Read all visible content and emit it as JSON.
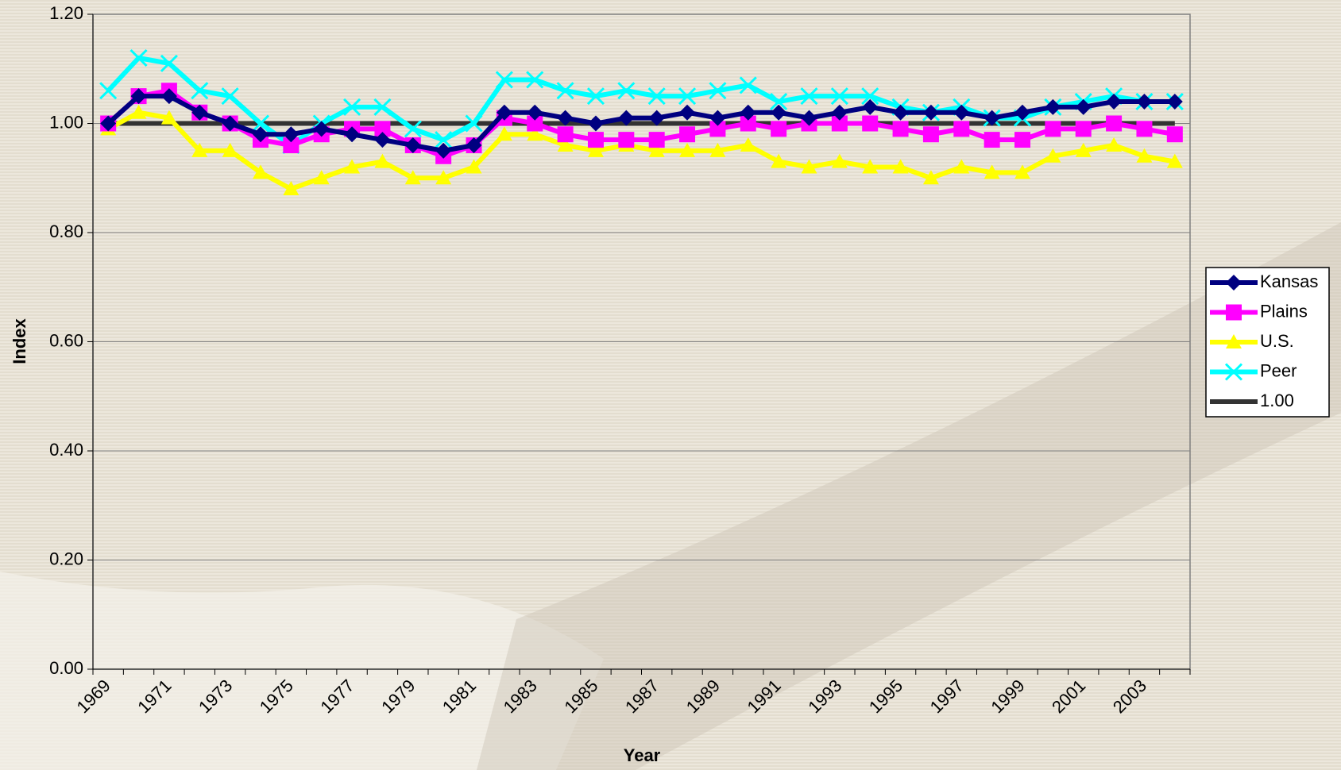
{
  "chart_data": {
    "type": "line",
    "x_label": "Year",
    "y_label": "Index",
    "categories": [
      "1969",
      null,
      "1971",
      null,
      "1973",
      null,
      "1975",
      null,
      "1977",
      null,
      "1979",
      null,
      "1981",
      null,
      "1983",
      null,
      "1985",
      null,
      "1987",
      null,
      "1989",
      null,
      "1991",
      null,
      "1993",
      null,
      "1995",
      null,
      "1997",
      null,
      "1999",
      null,
      "2001",
      null,
      "2003",
      null
    ],
    "series": [
      {
        "name": "Kansas",
        "color": "#000080",
        "marker": "diamond",
        "values": [
          1.0,
          1.05,
          1.05,
          1.02,
          1.0,
          0.98,
          0.98,
          0.99,
          0.98,
          0.97,
          0.96,
          0.95,
          0.96,
          1.02,
          1.02,
          1.01,
          1.0,
          1.01,
          1.01,
          1.02,
          1.01,
          1.02,
          1.02,
          1.01,
          1.02,
          1.03,
          1.02,
          1.02,
          1.02,
          1.01,
          1.02,
          1.03,
          1.03,
          1.04,
          1.04,
          1.04
        ]
      },
      {
        "name": "Plains",
        "color": "#ff00ff",
        "marker": "square",
        "values": [
          1.0,
          1.05,
          1.06,
          1.02,
          1.0,
          0.97,
          0.96,
          0.98,
          0.99,
          0.99,
          0.96,
          0.94,
          0.96,
          1.01,
          1.0,
          0.98,
          0.97,
          0.97,
          0.97,
          0.98,
          0.99,
          1.0,
          0.99,
          1.0,
          1.0,
          1.0,
          0.99,
          0.98,
          0.99,
          0.97,
          0.97,
          0.99,
          0.99,
          1.0,
          0.99,
          0.98
        ]
      },
      {
        "name": "U.S.",
        "color": "#ffff00",
        "marker": "triangle",
        "values": [
          0.99,
          1.02,
          1.01,
          0.95,
          0.95,
          0.91,
          0.88,
          0.9,
          0.92,
          0.93,
          0.9,
          0.9,
          0.92,
          0.98,
          0.98,
          0.96,
          0.95,
          0.96,
          0.95,
          0.95,
          0.95,
          0.96,
          0.93,
          0.92,
          0.93,
          0.92,
          0.92,
          0.9,
          0.92,
          0.91,
          0.91,
          0.94,
          0.95,
          0.96,
          0.94,
          0.93
        ]
      },
      {
        "name": "Peer",
        "color": "#00ffff",
        "marker": "x",
        "values": [
          1.06,
          1.12,
          1.11,
          1.06,
          1.05,
          1.0,
          0.96,
          1.0,
          1.03,
          1.03,
          0.99,
          0.97,
          1.0,
          1.08,
          1.08,
          1.06,
          1.05,
          1.06,
          1.05,
          1.05,
          1.06,
          1.07,
          1.04,
          1.05,
          1.05,
          1.05,
          1.03,
          1.02,
          1.03,
          1.01,
          1.01,
          1.03,
          1.04,
          1.05,
          1.04,
          1.04
        ]
      },
      {
        "name": "1.00",
        "color": "#333333",
        "marker": "none",
        "values": [
          1,
          1,
          1,
          1,
          1,
          1,
          1,
          1,
          1,
          1,
          1,
          1,
          1,
          1,
          1,
          1,
          1,
          1,
          1,
          1,
          1,
          1,
          1,
          1,
          1,
          1,
          1,
          1,
          1,
          1,
          1,
          1,
          1,
          1,
          1,
          1
        ]
      }
    ],
    "ylim": [
      0,
      1.2
    ],
    "yticks": [
      {
        "value": 0,
        "label": "0.00"
      },
      {
        "value": 0.2,
        "label": "0.20"
      },
      {
        "value": 0.4,
        "label": "0.40"
      },
      {
        "value": 0.6,
        "label": "0.60"
      },
      {
        "value": 0.8,
        "label": "0.80"
      },
      {
        "value": 1,
        "label": "1.00"
      },
      {
        "value": 1.2,
        "label": "1.20"
      }
    ],
    "grid": true,
    "legend": "right"
  }
}
